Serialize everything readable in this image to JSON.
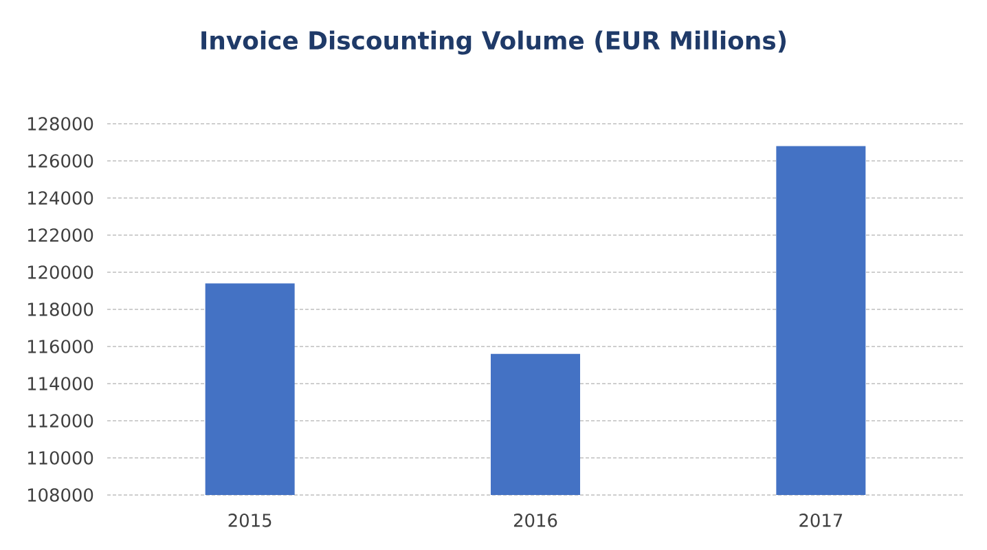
{
  "chart_data": {
    "type": "bar",
    "title": "Invoice Discounting Volume (EUR Millions)",
    "categories": [
      "2015",
      "2016",
      "2017"
    ],
    "values": [
      119400,
      115600,
      126800
    ],
    "color": "#4472c4",
    "ylim": [
      108000,
      128000
    ],
    "yticks": [
      108000,
      110000,
      112000,
      114000,
      116000,
      118000,
      120000,
      122000,
      124000,
      126000,
      128000
    ],
    "grid": "y"
  }
}
